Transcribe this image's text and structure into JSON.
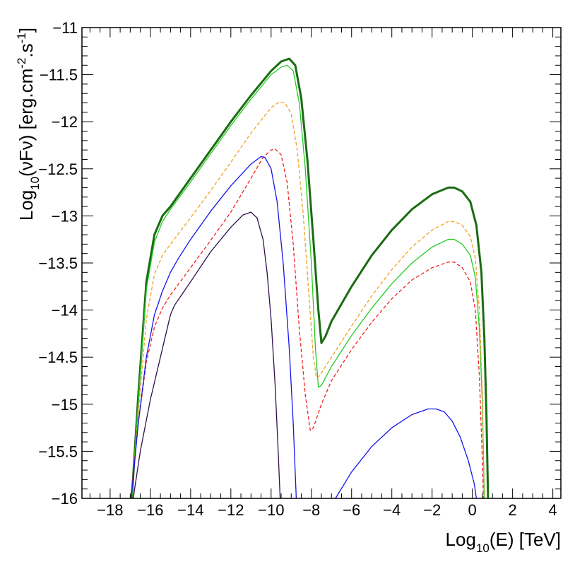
{
  "chart_data": {
    "type": "line",
    "xlabel": "Log",
    "xlabel_sub": "10",
    "xlabel_rest": "(E) [TeV]",
    "ylabel": "Log",
    "ylabel_sub": "10",
    "ylabel_mid": "(νFν) [erg.cm",
    "ylabel_sup1": "-2",
    "ylabel_mid2": ".s",
    "ylabel_sup2": "-1",
    "ylabel_end": "]",
    "xlim": [
      -19.4,
      4.4
    ],
    "ylim": [
      -16,
      -11
    ],
    "grid": false,
    "legend": "none",
    "x_ticks": [
      -18,
      -16,
      -14,
      -12,
      -10,
      -8,
      -6,
      -4,
      -2,
      0,
      2,
      4
    ],
    "x_tick_labels": [
      "−18",
      "−16",
      "−14",
      "−12",
      "−10",
      "−8",
      "−6",
      "−4",
      "−2",
      "0",
      "2",
      "4"
    ],
    "y_ticks": [
      -11,
      -11.5,
      -12,
      -12.5,
      -13,
      -13.5,
      -14,
      -14.5,
      -15,
      -15.5,
      -16
    ],
    "y_tick_labels": [
      "−11",
      "−11.5",
      "−12",
      "−12.5",
      "−13",
      "−13.5",
      "−14",
      "−14.5",
      "−15",
      "−15.5",
      "−16"
    ],
    "series": [
      {
        "color": "#1a6b12",
        "style": "solid",
        "width": 3,
        "points": [
          [
            -16.92,
            -16.0
          ],
          [
            -16.6,
            -14.9
          ],
          [
            -16.2,
            -13.7
          ],
          [
            -15.8,
            -13.2
          ],
          [
            -15.4,
            -13.0
          ],
          [
            -15.0,
            -12.9
          ],
          [
            -14.0,
            -12.6
          ],
          [
            -13.0,
            -12.3
          ],
          [
            -12.0,
            -12.0
          ],
          [
            -11.0,
            -11.72
          ],
          [
            -10.0,
            -11.46
          ],
          [
            -9.5,
            -11.36
          ],
          [
            -9.1,
            -11.33
          ],
          [
            -8.8,
            -11.4
          ],
          [
            -8.5,
            -11.75
          ],
          [
            -8.2,
            -12.4
          ],
          [
            -7.9,
            -13.25
          ],
          [
            -7.65,
            -14.0
          ],
          [
            -7.5,
            -14.35
          ],
          [
            -7.3,
            -14.28
          ],
          [
            -7.0,
            -14.12
          ],
          [
            -6.0,
            -13.75
          ],
          [
            -5.0,
            -13.42
          ],
          [
            -4.0,
            -13.15
          ],
          [
            -3.0,
            -12.93
          ],
          [
            -2.0,
            -12.77
          ],
          [
            -1.2,
            -12.7
          ],
          [
            -0.9,
            -12.7
          ],
          [
            -0.5,
            -12.74
          ],
          [
            -0.1,
            -12.85
          ],
          [
            0.2,
            -13.1
          ],
          [
            0.45,
            -13.6
          ],
          [
            0.6,
            -14.3
          ],
          [
            0.7,
            -15.1
          ],
          [
            0.78,
            -16.0
          ]
        ]
      },
      {
        "color": "#22cc22",
        "style": "solid",
        "width": 1.3,
        "points": [
          [
            -16.92,
            -16.0
          ],
          [
            -16.6,
            -14.95
          ],
          [
            -16.2,
            -13.78
          ],
          [
            -15.8,
            -13.28
          ],
          [
            -15.4,
            -13.06
          ],
          [
            -15.0,
            -12.93
          ],
          [
            -14.0,
            -12.64
          ],
          [
            -13.0,
            -12.34
          ],
          [
            -12.0,
            -12.04
          ],
          [
            -11.0,
            -11.76
          ],
          [
            -10.0,
            -11.5
          ],
          [
            -9.5,
            -11.42
          ],
          [
            -9.2,
            -11.4
          ],
          [
            -8.9,
            -11.46
          ],
          [
            -8.6,
            -11.8
          ],
          [
            -8.3,
            -12.5
          ],
          [
            -8.0,
            -13.5
          ],
          [
            -7.8,
            -14.4
          ],
          [
            -7.65,
            -14.82
          ],
          [
            -7.5,
            -14.8
          ],
          [
            -7.0,
            -14.6
          ],
          [
            -6.0,
            -14.27
          ],
          [
            -5.0,
            -13.98
          ],
          [
            -4.0,
            -13.72
          ],
          [
            -3.0,
            -13.5
          ],
          [
            -2.0,
            -13.33
          ],
          [
            -1.2,
            -13.25
          ],
          [
            -0.9,
            -13.25
          ],
          [
            -0.5,
            -13.3
          ],
          [
            -0.1,
            -13.42
          ],
          [
            0.15,
            -13.65
          ],
          [
            0.35,
            -14.2
          ],
          [
            0.5,
            -15.0
          ],
          [
            0.6,
            -16.0
          ]
        ]
      },
      {
        "color": "#f0a020",
        "style": "dashed",
        "width": 1.3,
        "points": [
          [
            -16.95,
            -16.0
          ],
          [
            -16.6,
            -15.1
          ],
          [
            -16.2,
            -14.1
          ],
          [
            -15.8,
            -13.62
          ],
          [
            -15.4,
            -13.42
          ],
          [
            -15.0,
            -13.3
          ],
          [
            -14.0,
            -13.02
          ],
          [
            -13.0,
            -12.73
          ],
          [
            -12.0,
            -12.43
          ],
          [
            -11.0,
            -12.12
          ],
          [
            -10.0,
            -11.85
          ],
          [
            -9.6,
            -11.79
          ],
          [
            -9.3,
            -11.8
          ],
          [
            -9.0,
            -11.92
          ],
          [
            -8.7,
            -12.3
          ],
          [
            -8.4,
            -13.0
          ],
          [
            -8.1,
            -13.9
          ],
          [
            -7.9,
            -14.5
          ],
          [
            -7.75,
            -14.72
          ],
          [
            -7.6,
            -14.7
          ],
          [
            -7.0,
            -14.5
          ],
          [
            -6.0,
            -14.17
          ],
          [
            -5.0,
            -13.85
          ],
          [
            -4.0,
            -13.57
          ],
          [
            -3.0,
            -13.33
          ],
          [
            -2.0,
            -13.15
          ],
          [
            -1.2,
            -13.06
          ],
          [
            -0.9,
            -13.06
          ],
          [
            -0.5,
            -13.1
          ],
          [
            -0.1,
            -13.22
          ],
          [
            0.15,
            -13.45
          ],
          [
            0.35,
            -14.0
          ],
          [
            0.5,
            -14.9
          ],
          [
            0.58,
            -16.0
          ]
        ]
      },
      {
        "color": "#ee2222",
        "style": "dashed",
        "width": 1.3,
        "points": [
          [
            -16.98,
            -16.0
          ],
          [
            -16.6,
            -15.2
          ],
          [
            -16.2,
            -14.55
          ],
          [
            -15.8,
            -14.18
          ],
          [
            -15.4,
            -13.98
          ],
          [
            -15.0,
            -13.84
          ],
          [
            -14.0,
            -13.55
          ],
          [
            -13.0,
            -13.26
          ],
          [
            -12.0,
            -12.96
          ],
          [
            -11.0,
            -12.6
          ],
          [
            -10.4,
            -12.38
          ],
          [
            -10.0,
            -12.3
          ],
          [
            -9.8,
            -12.29
          ],
          [
            -9.5,
            -12.35
          ],
          [
            -9.2,
            -12.65
          ],
          [
            -8.9,
            -13.3
          ],
          [
            -8.6,
            -14.2
          ],
          [
            -8.3,
            -14.9
          ],
          [
            -8.05,
            -15.28
          ],
          [
            -7.9,
            -15.25
          ],
          [
            -7.5,
            -15.0
          ],
          [
            -7.0,
            -14.75
          ],
          [
            -6.0,
            -14.42
          ],
          [
            -5.0,
            -14.13
          ],
          [
            -4.0,
            -13.88
          ],
          [
            -3.0,
            -13.68
          ],
          [
            -2.0,
            -13.55
          ],
          [
            -1.2,
            -13.49
          ],
          [
            -0.9,
            -13.49
          ],
          [
            -0.5,
            -13.55
          ],
          [
            -0.1,
            -13.7
          ],
          [
            0.15,
            -14.0
          ],
          [
            0.35,
            -14.7
          ],
          [
            0.5,
            -15.6
          ],
          [
            0.55,
            -16.0
          ]
        ]
      },
      {
        "color": "#1515ee",
        "style": "solid",
        "width": 1.3,
        "points": [
          [
            -16.95,
            -16.0
          ],
          [
            -16.6,
            -15.2
          ],
          [
            -16.2,
            -14.5
          ],
          [
            -15.8,
            -14.05
          ],
          [
            -15.4,
            -13.8
          ],
          [
            -15.0,
            -13.6
          ],
          [
            -14.6,
            -13.45
          ],
          [
            -14.0,
            -13.25
          ],
          [
            -13.0,
            -12.95
          ],
          [
            -12.0,
            -12.68
          ],
          [
            -11.0,
            -12.45
          ],
          [
            -10.5,
            -12.37
          ],
          [
            -10.3,
            -12.38
          ],
          [
            -10.0,
            -12.5
          ],
          [
            -9.7,
            -12.85
          ],
          [
            -9.4,
            -13.5
          ],
          [
            -9.1,
            -14.4
          ],
          [
            -8.9,
            -15.2
          ],
          [
            -8.75,
            -16.0
          ]
        ]
      },
      {
        "color": "#1515ee",
        "style": "solid",
        "width": 1.3,
        "points": [
          [
            -6.8,
            -16.0
          ],
          [
            -6.0,
            -15.72
          ],
          [
            -5.0,
            -15.45
          ],
          [
            -4.0,
            -15.25
          ],
          [
            -3.0,
            -15.11
          ],
          [
            -2.2,
            -15.05
          ],
          [
            -1.8,
            -15.05
          ],
          [
            -1.4,
            -15.08
          ],
          [
            -1.0,
            -15.18
          ],
          [
            -0.6,
            -15.35
          ],
          [
            -0.2,
            -15.6
          ],
          [
            0.1,
            -15.85
          ],
          [
            0.2,
            -16.0
          ]
        ]
      },
      {
        "color": "#301050",
        "style": "solid",
        "width": 1.3,
        "points": [
          [
            -16.85,
            -16.0
          ],
          [
            -16.5,
            -15.5
          ],
          [
            -16.0,
            -14.95
          ],
          [
            -15.5,
            -14.5
          ],
          [
            -15.0,
            -14.05
          ],
          [
            -14.8,
            -13.95
          ],
          [
            -14.0,
            -13.7
          ],
          [
            -13.0,
            -13.38
          ],
          [
            -12.0,
            -13.12
          ],
          [
            -11.4,
            -12.99
          ],
          [
            -11.0,
            -12.96
          ],
          [
            -10.7,
            -13.02
          ],
          [
            -10.4,
            -13.25
          ],
          [
            -10.2,
            -13.6
          ],
          [
            -10.0,
            -14.1
          ],
          [
            -9.8,
            -14.8
          ],
          [
            -9.65,
            -15.5
          ],
          [
            -9.55,
            -16.0
          ]
        ]
      }
    ]
  }
}
